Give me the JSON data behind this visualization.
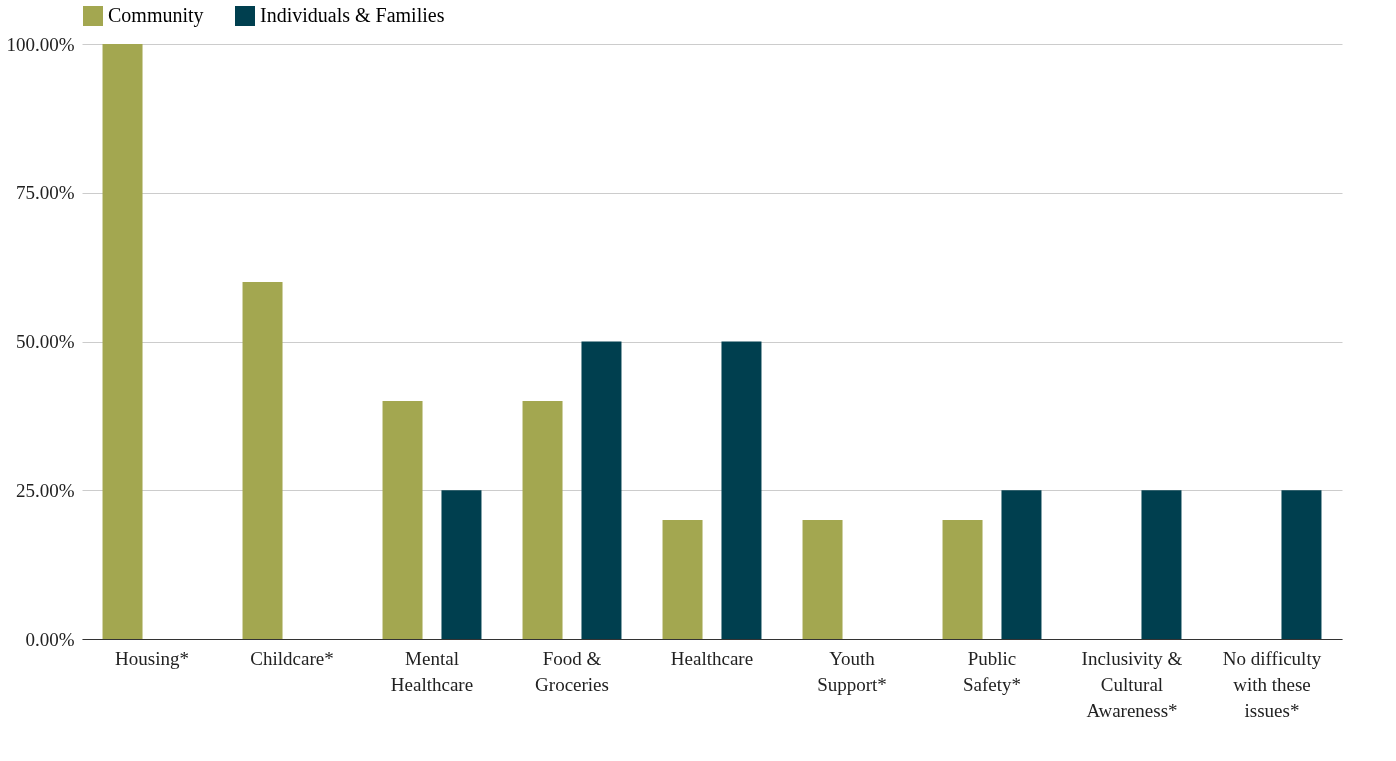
{
  "chart_data": {
    "type": "bar",
    "categories": [
      "Housing*",
      "Childcare*",
      "Mental Healthcare",
      "Food & Groceries",
      "Healthcare",
      "Youth Support*",
      "Public Safety*",
      "Inclusivity & Cultural Awareness*",
      "No difficulty with these issues*"
    ],
    "series": [
      {
        "name": "Community",
        "color": "#a3a750",
        "values": [
          100,
          60,
          40,
          40,
          20,
          20,
          20,
          null,
          null
        ]
      },
      {
        "name": "Individuals & Families",
        "color": "#003f4f",
        "values": [
          null,
          null,
          25,
          50,
          50,
          null,
          25,
          25,
          25
        ]
      }
    ],
    "ylim": [
      0,
      100
    ],
    "yticks": [
      {
        "value": 0,
        "label": "0.00%"
      },
      {
        "value": 25,
        "label": "25.00%"
      },
      {
        "value": 50,
        "label": "50.00%"
      },
      {
        "value": 75,
        "label": "75.00%"
      },
      {
        "value": 100,
        "label": "100.00%"
      }
    ],
    "grid": "y",
    "legend": "top"
  }
}
